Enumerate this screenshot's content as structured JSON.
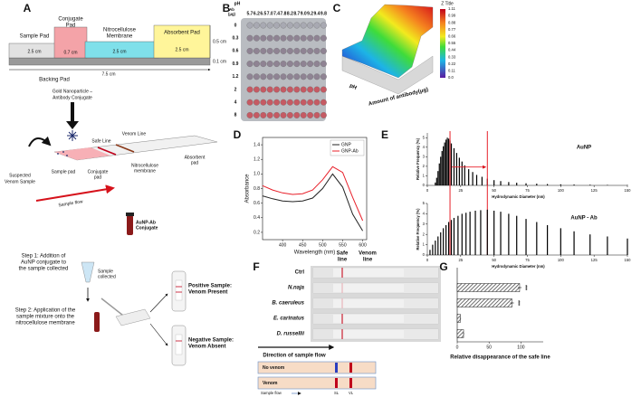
{
  "figure": {
    "panel_labels": [
      "A",
      "B",
      "C",
      "D",
      "E",
      "F",
      "G"
    ],
    "a": {
      "sample_pad": "Sample Pad",
      "conjugate_pad": [
        "Conjugate",
        "Pad"
      ],
      "nitrocellulose": [
        "Nitrocellulose",
        "Membrane"
      ],
      "absorbent_pad": "Absorbent Pad",
      "dims": [
        "2.5 cm",
        "0.7 cm",
        "2.5 cm",
        "2.5 cm",
        "0.5 cm",
        "0.1 cm",
        "7.5 cm"
      ],
      "backing_pad": "Backing Pad",
      "conjugate_label": [
        "Gold Nanoparticle –",
        "Antibody Conjugate"
      ],
      "safe_line": "Safe Line",
      "venom_line": "Venom Line",
      "sample_label": [
        "Suspected",
        "Venom Sample"
      ],
      "strip_parts": [
        [
          "Sample pad"
        ],
        [
          "Conjugate",
          "pad"
        ],
        [
          "Nitrocellulose",
          "membrane"
        ],
        [
          "Absorbent",
          "pad"
        ]
      ],
      "sample_flow": "Sample flow",
      "step1": [
        "Step 1: Addition of",
        "AuNP conjugate to",
        "the sample collected"
      ],
      "reagent": [
        "AuNP-Ab",
        "Conjugate"
      ],
      "collected": [
        "Sample",
        "collected"
      ],
      "positive": [
        "Positive Sample:",
        "Venom Present"
      ],
      "step2": [
        "Step 2: Application of the",
        "sample mixture onto the",
        "nitrocellulose membrane"
      ],
      "negative": [
        "Negative Sample:",
        "Venom Absent"
      ]
    },
    "b": {
      "row_title": [
        "Ab",
        "(μg)"
      ],
      "col_title": "pH",
      "ph": [
        "5.7",
        "6.2",
        "6.5",
        "7.0",
        "7.4",
        "7.8",
        "8.2",
        "8.7",
        "9.0",
        "9.2",
        "9.4",
        "9.8"
      ],
      "ab": [
        "0",
        "0.3",
        "0.6",
        "0.9",
        "1.2",
        "2",
        "4",
        "8"
      ]
    },
    "c": {
      "colorbar_title": "Z Title",
      "colorbar_ticks": [
        "1.11",
        "0.99",
        "0.88",
        "0.77",
        "0.66",
        "0.55",
        "0.44",
        "0.33",
        "0.22",
        "0.11",
        "0.0"
      ],
      "x_label": "pH",
      "y_label": "Amount of antibody(μg)"
    },
    "f": {
      "rows": [
        "Ctrl",
        "N.naja",
        "B. caeruleus",
        "E. carinatus",
        "D. russellii"
      ],
      "safe": [
        "Safe",
        "line"
      ],
      "venom": [
        "Venom",
        "line"
      ],
      "direction": "Direction of sample flow",
      "no_venom": "No venom",
      "venom_row": "Venom",
      "flow": "Sample flow",
      "sl": "SL",
      "vl": "VL"
    }
  },
  "chart_data": [
    {
      "type": "line",
      "x": [
        350,
        375,
        400,
        425,
        450,
        475,
        500,
        525,
        550,
        575,
        600
      ],
      "series": [
        {
          "name": "GNP",
          "color": "#222222",
          "values": [
            0.7,
            0.66,
            0.63,
            0.62,
            0.63,
            0.67,
            0.8,
            1.0,
            0.82,
            0.45,
            0.22
          ]
        },
        {
          "name": "GNP-Ab",
          "color": "#e8202a",
          "values": [
            0.84,
            0.78,
            0.74,
            0.72,
            0.73,
            0.78,
            0.92,
            1.1,
            1.02,
            0.68,
            0.36
          ]
        }
      ],
      "xlim": [
        350,
        610
      ],
      "xticks": [
        400,
        450,
        500,
        550,
        600
      ],
      "ylim": [
        0.1,
        1.5
      ],
      "yticks": [
        0.2,
        0.4,
        0.6,
        0.8,
        {
          "value": 1,
          "label": "1.0"
        },
        1.2,
        1.4
      ],
      "x_label": "Wavelength (nm)",
      "y_label": "Absorbance",
      "legend": "upper right"
    },
    {
      "type": "bar",
      "title": "AuNP",
      "x": [
        6,
        7,
        8,
        9,
        10,
        11,
        12,
        13,
        14,
        15,
        16,
        17,
        18,
        20,
        22,
        24,
        26,
        28,
        31,
        34,
        37,
        41,
        45,
        50,
        55,
        61,
        67,
        74,
        82,
        90,
        100,
        110,
        122,
        135,
        150
      ],
      "values": [
        0.3,
        0.8,
        1.5,
        2.3,
        3.0,
        3.6,
        4.1,
        4.5,
        4.8,
        5.0,
        4.9,
        4.7,
        4.4,
        3.9,
        3.4,
        2.9,
        2.5,
        2.1,
        1.7,
        1.4,
        1.1,
        0.9,
        0.7,
        0.55,
        0.45,
        0.35,
        0.28,
        0.22,
        0.18,
        0.14,
        0.11,
        0.09,
        0.07,
        0.05,
        0.04
      ],
      "color": "#000000",
      "xlim": [
        0,
        150
      ],
      "xticks": [
        0,
        25,
        50,
        75,
        100,
        125,
        150
      ],
      "ylim": [
        0,
        5.5
      ],
      "yticks": [
        0,
        1,
        2,
        3,
        4,
        5
      ],
      "x_label": "Hydrodynamic Diameter (nm)",
      "y_label": "Relative Frequency (%)",
      "markers": [
        17,
        45
      ],
      "marker_color": "#e8202a"
    },
    {
      "type": "bar",
      "title": "AuNP - Ab",
      "x": [
        2,
        4,
        6,
        8,
        10,
        12,
        14,
        16,
        18,
        20,
        23,
        26,
        29,
        32,
        36,
        40,
        45,
        50,
        55,
        61,
        67,
        74,
        82,
        90,
        100,
        110,
        122,
        135,
        150
      ],
      "values": [
        0.5,
        1.0,
        1.4,
        1.8,
        2.2,
        2.6,
        2.9,
        3.2,
        3.4,
        3.6,
        3.8,
        4.0,
        4.1,
        4.2,
        4.3,
        4.35,
        4.4,
        4.3,
        4.2,
        4.0,
        3.8,
        3.5,
        3.2,
        2.9,
        2.6,
        2.3,
        2.0,
        1.8,
        1.6
      ],
      "color": "#000000",
      "xlim": [
        0,
        150
      ],
      "xticks": [
        0,
        25,
        50,
        75,
        100,
        125,
        150
      ],
      "ylim": [
        0,
        5
      ],
      "yticks": [
        0,
        1,
        2,
        3,
        4,
        5
      ],
      "x_label": "Hydrodynamic Diameter (nm)",
      "y_label": "Relative Frequency (%)"
    },
    {
      "type": "hbar",
      "values": [
        98,
        86,
        5,
        10
      ],
      "errors": [
        3,
        3,
        1,
        1
      ],
      "significance": [
        {
          "index": 0,
          "label": "***"
        },
        {
          "index": 1,
          "label": "***"
        }
      ],
      "xlim": [
        0,
        135
      ],
      "xticks": [
        0,
        50,
        100
      ],
      "x_label": "Relative disappearance of the safe line"
    }
  ]
}
